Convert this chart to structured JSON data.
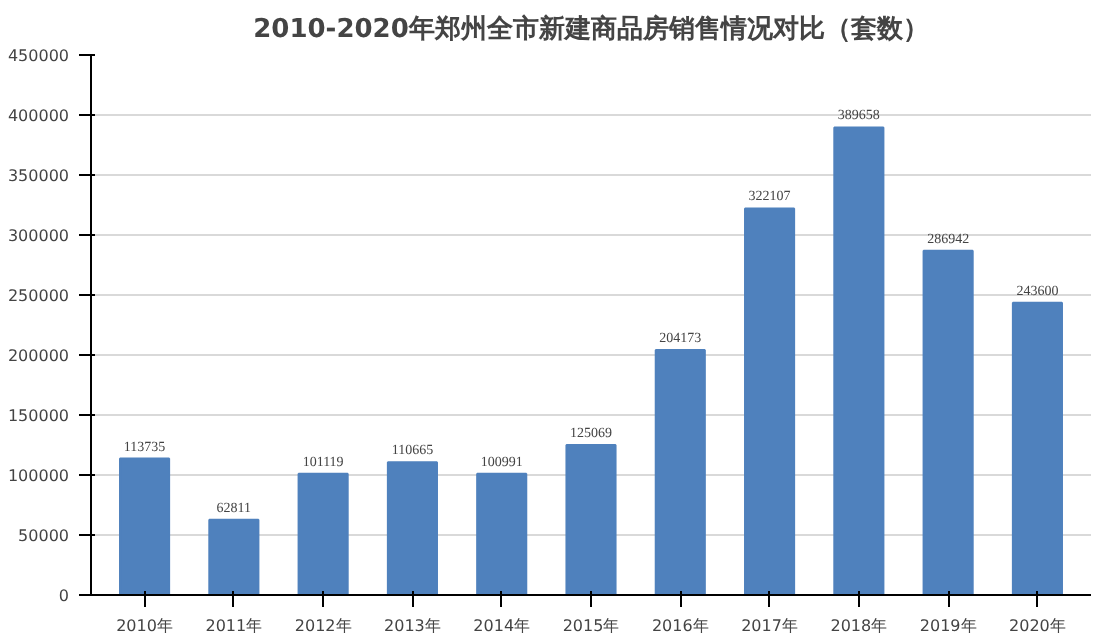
{
  "chart_data": {
    "type": "bar",
    "title": "2010-2020年郑州全市新建商品房销售情况对比（套数）",
    "categories": [
      "2010年",
      "2011年",
      "2012年",
      "2013年",
      "2014年",
      "2015年",
      "2016年",
      "2017年",
      "2018年",
      "2019年",
      "2020年"
    ],
    "values": [
      113735,
      62811,
      101119,
      110665,
      100991,
      125069,
      204173,
      322107,
      389658,
      286942,
      243600
    ],
    "color": "#4f81bd",
    "ylim": [
      0,
      450000
    ],
    "yticks": [
      0,
      50000,
      100000,
      150000,
      200000,
      250000,
      300000,
      350000,
      400000,
      450000
    ],
    "grid": "y",
    "data_labels": true
  }
}
